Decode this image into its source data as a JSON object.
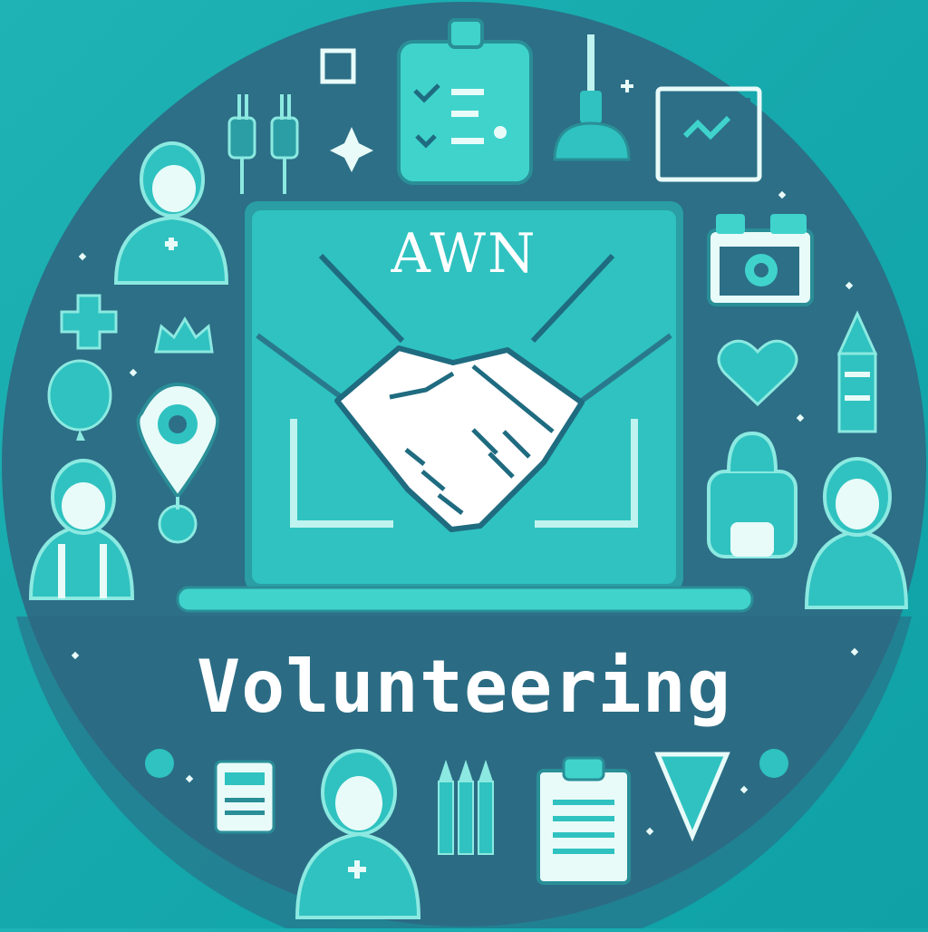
{
  "logo": {
    "brand_text": "AWN",
    "tagline": "Volunteering",
    "center_icon": "handshake-icon",
    "colors": {
      "background": "#16abae",
      "circle": "#2c6f86",
      "accent": "#2fc9c4",
      "accent_light": "#5fe0d6",
      "text": "#ffffff"
    }
  }
}
